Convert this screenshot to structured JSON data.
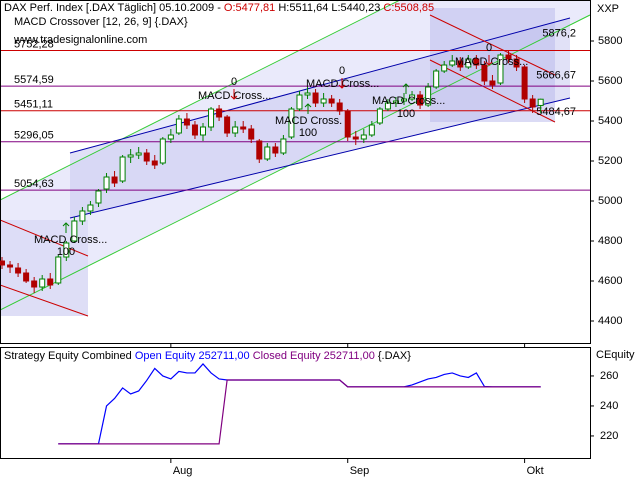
{
  "chart_data": [
    {
      "type": "candlestick",
      "title": "DAX Perf. Index [.DAX  Täglich] 05.10.2009 -",
      "ohlc_text": [
        "O:5477,81",
        "H:5511,64",
        "L:5440,23",
        "C:5508,85"
      ],
      "subtitle": "MACD Crossover [12, 26, 9] {.DAX}",
      "watermark": "www.tradesignalonline.com",
      "y_axis_label": "XXP",
      "categories": [
        null,
        null,
        null,
        null,
        null,
        null,
        null,
        null,
        null,
        null,
        null,
        null,
        null,
        null,
        null,
        null,
        null,
        null,
        null,
        null,
        null,
        "Aug",
        null,
        null,
        null,
        null,
        null,
        null,
        null,
        null,
        null,
        null,
        null,
        null,
        null,
        null,
        null,
        null,
        null,
        null,
        null,
        null,
        null,
        "Sep",
        null,
        null,
        null,
        null,
        null,
        null,
        null,
        null,
        null,
        null,
        null,
        null,
        null,
        null,
        null,
        null,
        null,
        null,
        null,
        null,
        null,
        "Okt",
        null,
        null
      ],
      "open": [
        4700,
        4680,
        4665,
        4640,
        4600,
        4570,
        4610,
        4590,
        4720,
        4800,
        4900,
        4950,
        4990,
        5060,
        5120,
        5100,
        5220,
        5230,
        5240,
        5200,
        5190,
        5310,
        5340,
        5410,
        5380,
        5330,
        5370,
        5460,
        5420,
        5340,
        5370,
        5360,
        5300,
        5210,
        5270,
        5240,
        5320,
        5460,
        5530,
        5540,
        5490,
        5510,
        5490,
        5450,
        5320,
        5310,
        5330,
        5390,
        5460,
        5490,
        5500,
        5510,
        5530,
        5480,
        5570,
        5650,
        5680,
        5700,
        5670,
        5710,
        5680,
        5600,
        5590,
        5730,
        5710,
        5670,
        5510,
        5477.81
      ],
      "high": [
        4720,
        4700,
        4690,
        4660,
        4620,
        4630,
        4640,
        4730,
        4800,
        4920,
        4970,
        5000,
        5060,
        5140,
        5150,
        5230,
        5260,
        5270,
        5260,
        5230,
        5320,
        5360,
        5430,
        5440,
        5400,
        5390,
        5470,
        5480,
        5430,
        5400,
        5400,
        5380,
        5310,
        5290,
        5290,
        5330,
        5470,
        5550,
        5570,
        5560,
        5540,
        5530,
        5510,
        5460,
        5350,
        5360,
        5400,
        5470,
        5510,
        5520,
        5540,
        5550,
        5550,
        5590,
        5660,
        5700,
        5730,
        5720,
        5730,
        5730,
        5700,
        5630,
        5740,
        5750,
        5730,
        5680,
        5530,
        5511.64
      ],
      "low": [
        4660,
        4640,
        4620,
        4590,
        4540,
        4550,
        4560,
        4580,
        4700,
        4790,
        4880,
        4930,
        4970,
        5040,
        5070,
        5090,
        5190,
        5210,
        5180,
        5160,
        5180,
        5290,
        5330,
        5360,
        5310,
        5300,
        5350,
        5400,
        5320,
        5320,
        5340,
        5290,
        5190,
        5200,
        5220,
        5230,
        5310,
        5450,
        5510,
        5470,
        5470,
        5470,
        5430,
        5300,
        5280,
        5290,
        5320,
        5380,
        5450,
        5470,
        5480,
        5500,
        5460,
        5470,
        5560,
        5640,
        5670,
        5650,
        5660,
        5660,
        5580,
        5560,
        5580,
        5690,
        5650,
        5490,
        5440,
        5440.23
      ],
      "close": [
        4680,
        4670,
        4640,
        4600,
        4570,
        4610,
        4580,
        4720,
        4790,
        4900,
        4950,
        4980,
        5050,
        5120,
        5090,
        5220,
        5230,
        5240,
        5200,
        5180,
        5310,
        5330,
        5410,
        5380,
        5330,
        5370,
        5460,
        5420,
        5340,
        5370,
        5360,
        5310,
        5210,
        5270,
        5240,
        5310,
        5460,
        5530,
        5540,
        5490,
        5510,
        5490,
        5450,
        5320,
        5310,
        5330,
        5380,
        5460,
        5490,
        5500,
        5510,
        5530,
        5480,
        5570,
        5650,
        5680,
        5700,
        5670,
        5710,
        5680,
        5600,
        5580,
        5730,
        5710,
        5670,
        5510,
        5470,
        5508.85
      ],
      "up_color": "#008000",
      "down_color": "#b00000",
      "ylim": [
        4290,
        6005
      ],
      "yticks": [
        4400,
        4600,
        4800,
        5000,
        5200,
        5400,
        5600,
        5800
      ],
      "levels": [
        {
          "value": 5752.28,
          "label": "5752,28",
          "color": "#cc0000"
        },
        {
          "value": 5574.59,
          "label": "5574,59",
          "color": "#800080"
        },
        {
          "value": 5451.11,
          "label": "5451,11",
          "color": "#cc0000"
        },
        {
          "value": 5296.05,
          "label": "5296,05",
          "color": "#800080"
        },
        {
          "value": 5054.63,
          "label": "5054,63",
          "color": "#800080"
        }
      ],
      "channel_ends": [
        {
          "value": 5876.2,
          "label": "5876,2",
          "color": "#0000cc"
        },
        {
          "value": 5666.67,
          "label": "5666,67",
          "color": "#cc0000"
        },
        {
          "value": 5484.67,
          "label": "5484,67",
          "color": "#cc0000"
        }
      ],
      "annotations": [
        {
          "text": "MACD Cross...",
          "value": 100
        },
        {
          "text": "MACD Cross...",
          "value": 0
        },
        {
          "text": "MACD Cross.",
          "value": 100
        },
        {
          "text": "MACD Cross...",
          "value": 0
        },
        {
          "text": "MACD Cross...",
          "value": 100
        },
        {
          "text": "MACD Cross...",
          "value": 0
        }
      ]
    },
    {
      "type": "line",
      "title": "Strategy Equity Combined",
      "suffix": "{.DAX}",
      "y_axis_label": "CEquity",
      "series": [
        {
          "name": "Open Equity 252711,00",
          "color": "#0000ff",
          "values": [
            null,
            null,
            null,
            null,
            null,
            null,
            null,
            214.7,
            214.7,
            214.7,
            214.7,
            214.7,
            214.7,
            240,
            245,
            252,
            248,
            250,
            257,
            265,
            260,
            258,
            263,
            262,
            262,
            268,
            262,
            258,
            257.3,
            257.3,
            257.3,
            257.3,
            257.3,
            257.3,
            257.3,
            257.3,
            257.3,
            257.3,
            257.3,
            257.3,
            257.3,
            257.3,
            257.3,
            252.711,
            252.711,
            252.711,
            252.711,
            252.711,
            252.711,
            252.711,
            252.711,
            254,
            256,
            258,
            259,
            261,
            262,
            260,
            259,
            262,
            253,
            252.711,
            252.711,
            252.711,
            252.711,
            252.711,
            252.711,
            252.711
          ]
        },
        {
          "name": "Closed Equity 252711,00",
          "color": "#800080",
          "values": [
            null,
            null,
            null,
            null,
            null,
            null,
            null,
            214.7,
            214.7,
            214.7,
            214.7,
            214.7,
            214.7,
            214.7,
            214.7,
            214.7,
            214.7,
            214.7,
            214.7,
            214.7,
            214.7,
            214.7,
            214.7,
            214.7,
            214.7,
            214.7,
            214.7,
            214.7,
            257.3,
            257.3,
            257.3,
            257.3,
            257.3,
            257.3,
            257.3,
            257.3,
            257.3,
            257.3,
            257.3,
            257.3,
            257.3,
            257.3,
            257.3,
            252.711,
            252.711,
            252.711,
            252.711,
            252.711,
            252.711,
            252.711,
            252.711,
            252.711,
            252.711,
            252.711,
            252.711,
            252.711,
            252.711,
            252.711,
            252.711,
            252.711,
            252.711,
            252.711,
            252.711,
            252.711,
            252.711,
            252.711,
            252.711,
            252.711
          ]
        }
      ],
      "ylim": [
        205.3,
        279.3
      ],
      "yticks": [
        220,
        240,
        260
      ]
    }
  ]
}
